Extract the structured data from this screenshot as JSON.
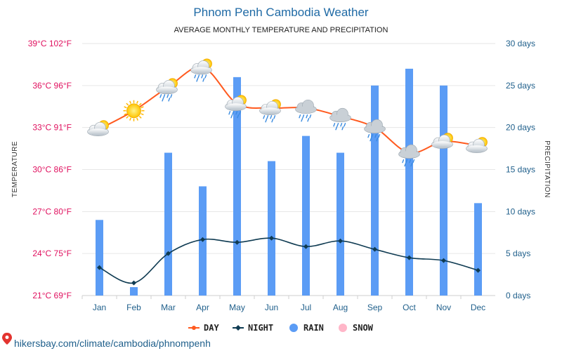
{
  "header": {
    "title": "Phnom Penh Cambodia Weather",
    "subtitle": "AVERAGE MONTHLY TEMPERATURE AND PRECIPITATION"
  },
  "source": {
    "text": "hikersbay.com/climate/cambodia/phnompenh"
  },
  "colors": {
    "day": "#ff5a1f",
    "night": "#0f3b52",
    "rain": "#5b9cf5",
    "snow": "#ffb6c8",
    "left_axis_text": "#e0115f",
    "right_axis_text": "#1f5f8b",
    "grid": "#e6e6e6"
  },
  "chart_data": {
    "type": "line",
    "categories": [
      "Jan",
      "Feb",
      "Mar",
      "Apr",
      "May",
      "Jun",
      "Jul",
      "Aug",
      "Sep",
      "Oct",
      "Nov",
      "Dec"
    ],
    "left_axis": {
      "title": "TEMPERATURE",
      "ylim": [
        21,
        39
      ],
      "tick_labels": [
        "39°C 102°F",
        "36°C 96°F",
        "33°C 91°F",
        "30°C 86°F",
        "27°C 80°F",
        "24°C 75°F",
        "21°C 69°F"
      ]
    },
    "right_axis": {
      "title": "PRECIPITATION",
      "ylim": [
        0,
        30
      ],
      "tick_labels": [
        "30 days",
        "25 days",
        "20 days",
        "15 days",
        "10 days",
        "5 days",
        "0 days"
      ]
    },
    "series": [
      {
        "name": "DAY",
        "axis": "left",
        "type": "line",
        "values": [
          32.9,
          34.2,
          35.9,
          37.3,
          34.7,
          34.4,
          34.4,
          33.8,
          33.0,
          31.2,
          32.0,
          31.7
        ]
      },
      {
        "name": "NIGHT",
        "axis": "left",
        "type": "line",
        "values": [
          23.0,
          21.9,
          24.0,
          25.0,
          24.8,
          25.1,
          24.5,
          24.9,
          24.3,
          23.7,
          23.5,
          22.8
        ]
      },
      {
        "name": "RAIN",
        "axis": "right",
        "type": "bar",
        "values": [
          9,
          1,
          17,
          13,
          26,
          16,
          19,
          17,
          25,
          27,
          25,
          11
        ]
      },
      {
        "name": "SNOW",
        "axis": "right",
        "type": "bar",
        "values": [
          0,
          0,
          0,
          0,
          0,
          0,
          0,
          0,
          0,
          0,
          0,
          0
        ]
      }
    ],
    "weather_icons": [
      "sun-cloud",
      "sun",
      "sun-cloud-rain",
      "sun-cloud-rain",
      "sun-cloud-rain",
      "sun-cloud-rain",
      "cloud-rain",
      "cloud-rain",
      "cloud-rain",
      "cloud-rain",
      "sun-cloud",
      "sun-cloud"
    ],
    "grid": true,
    "legend": {
      "position": "bottom",
      "items": [
        {
          "label": "DAY",
          "marker": "line-dot",
          "color_key": "day"
        },
        {
          "label": "NIGHT",
          "marker": "line-diamond",
          "color_key": "night"
        },
        {
          "label": "RAIN",
          "marker": "circle",
          "color_key": "rain"
        },
        {
          "label": "SNOW",
          "marker": "circle",
          "color_key": "snow"
        }
      ]
    }
  }
}
